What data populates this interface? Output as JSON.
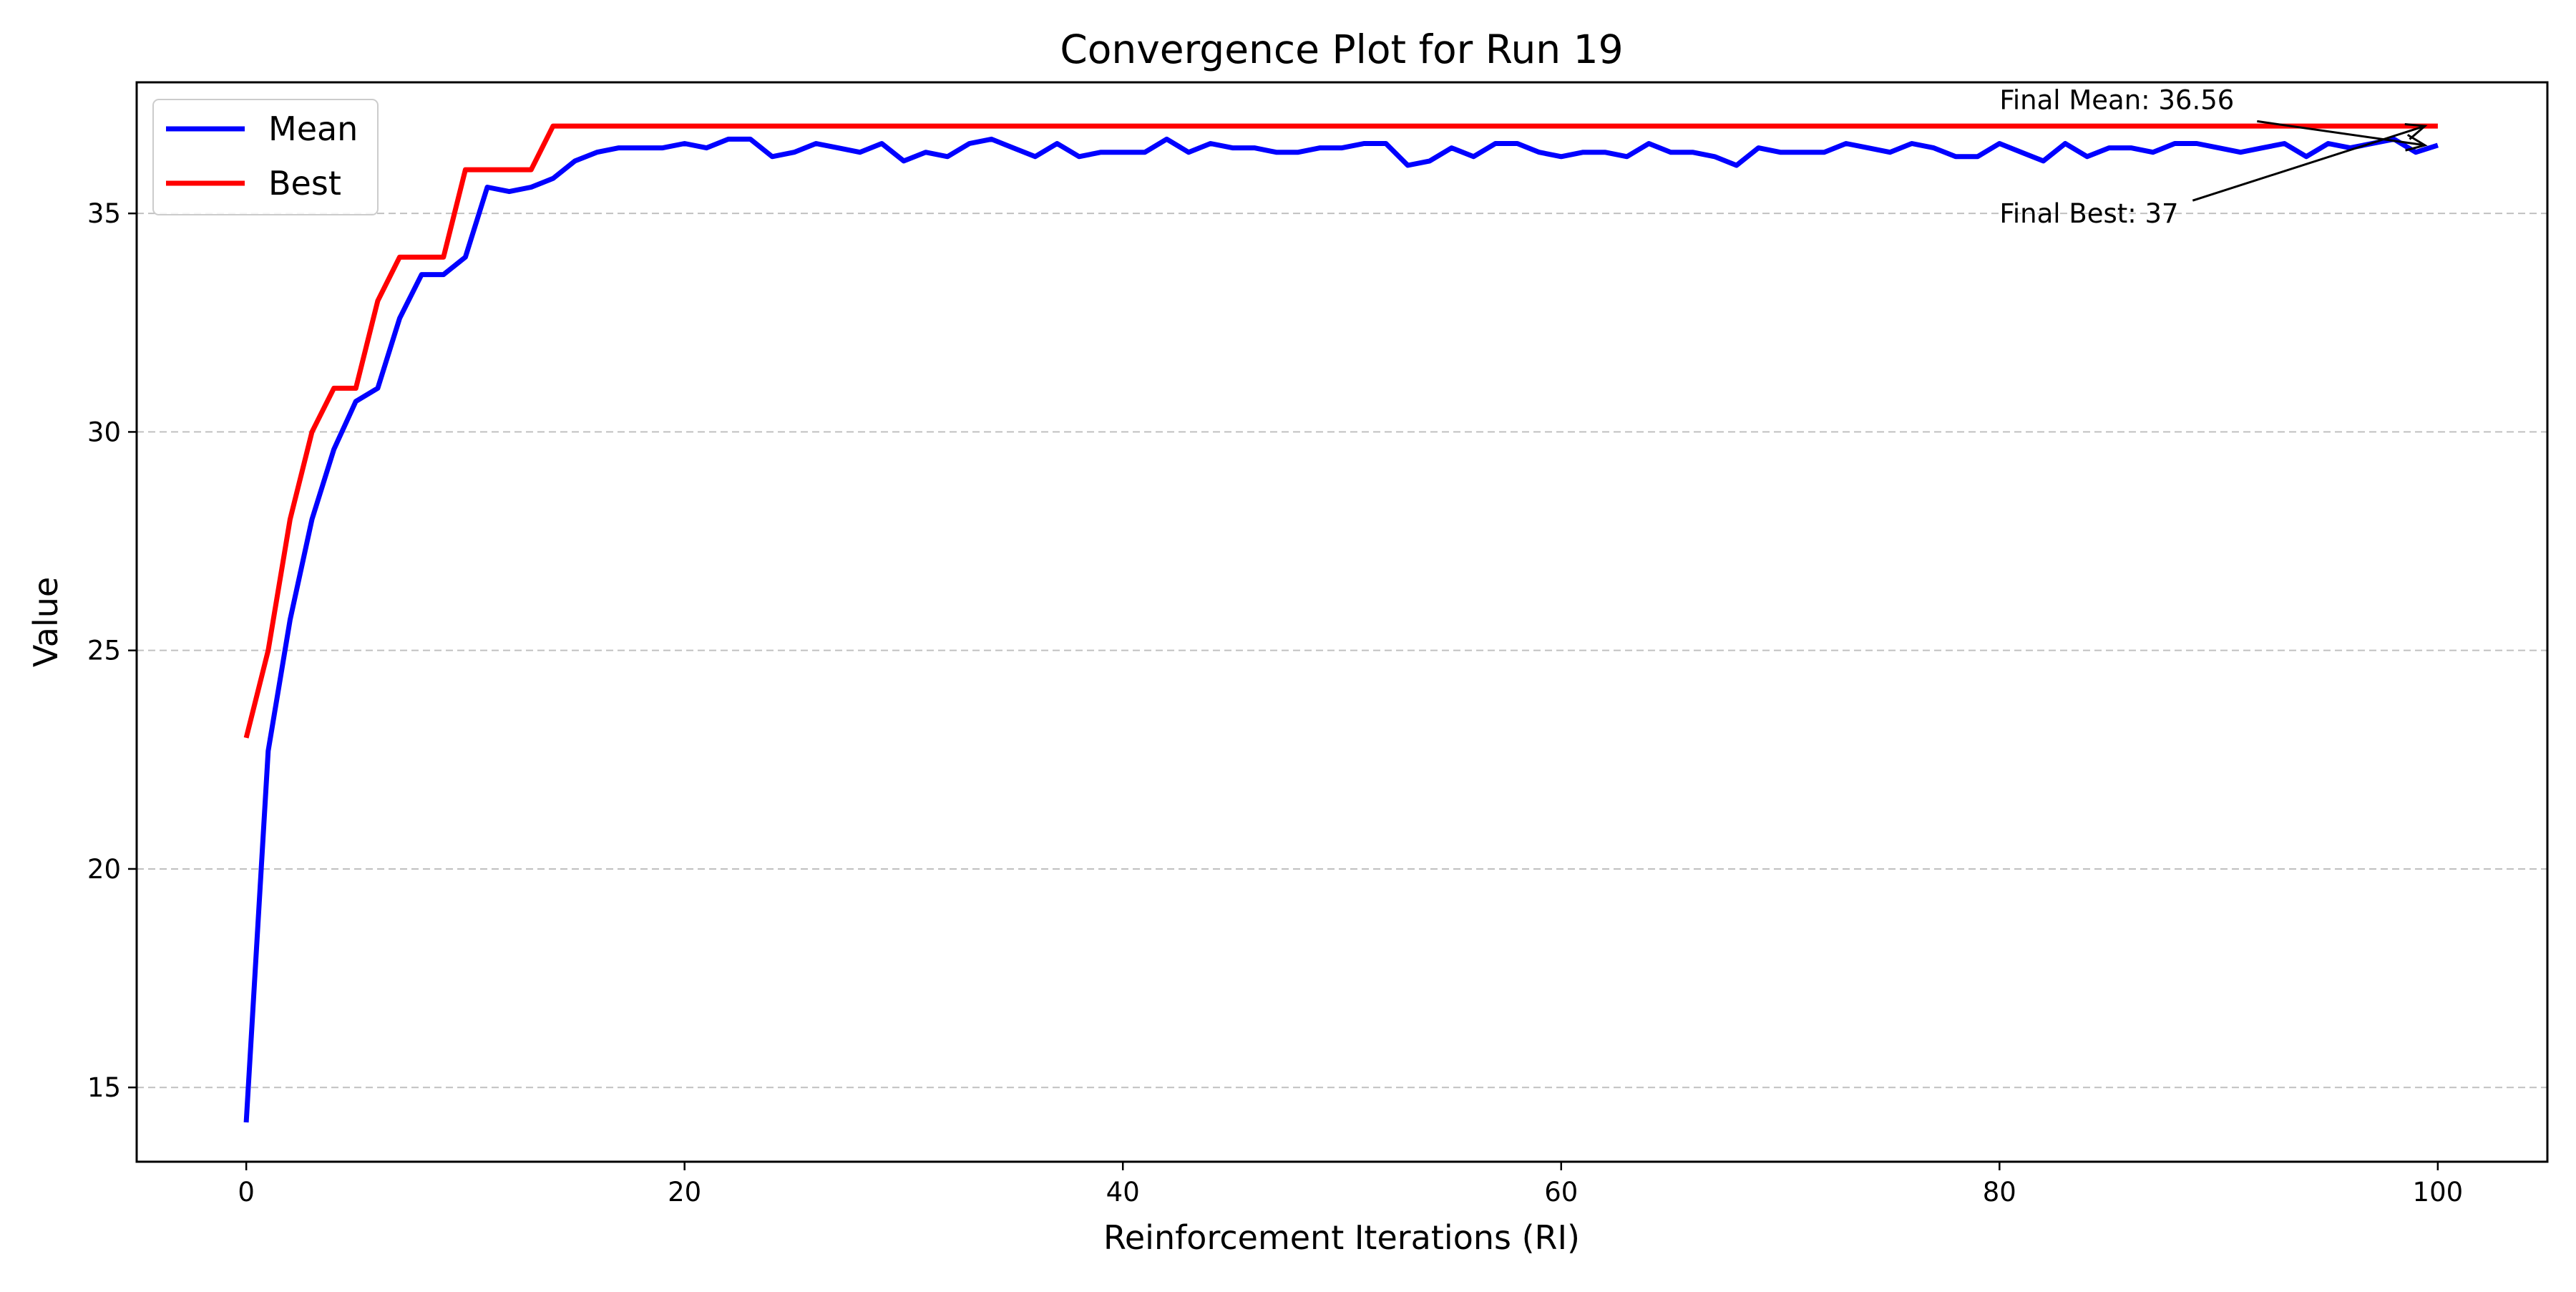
{
  "chart_data": {
    "type": "line",
    "title": "Convergence Plot for Run 19",
    "xlabel": "Reinforcement Iterations (RI)",
    "ylabel": "Value",
    "xlim": [
      -5,
      105
    ],
    "ylim": [
      13.3,
      38.0
    ],
    "xticks": [
      0,
      20,
      40,
      60,
      80,
      100
    ],
    "yticks": [
      15,
      20,
      25,
      30,
      35
    ],
    "grid": "y-dashed",
    "legend_position": "top-left",
    "series": [
      {
        "name": "Mean",
        "color": "#0000ff",
        "x": [
          0,
          1,
          2,
          3,
          4,
          5,
          6,
          7,
          8,
          9,
          10,
          11,
          12,
          13,
          14,
          15,
          16,
          17,
          18,
          19,
          20,
          21,
          22,
          23,
          24,
          25,
          26,
          27,
          28,
          29,
          30,
          31,
          32,
          33,
          34,
          35,
          36,
          37,
          38,
          39,
          40,
          41,
          42,
          43,
          44,
          45,
          46,
          47,
          48,
          49,
          50,
          51,
          52,
          53,
          54,
          55,
          56,
          57,
          58,
          59,
          60,
          61,
          62,
          63,
          64,
          65,
          66,
          67,
          68,
          69,
          70,
          71,
          72,
          73,
          74,
          75,
          76,
          77,
          78,
          79,
          80,
          81,
          82,
          83,
          84,
          85,
          86,
          87,
          88,
          89,
          90,
          91,
          92,
          93,
          94,
          95,
          96,
          97,
          98,
          99,
          100
        ],
        "values": [
          14.2,
          22.7,
          25.7,
          28.0,
          29.6,
          30.7,
          31.0,
          32.6,
          33.6,
          33.6,
          34.0,
          35.6,
          35.5,
          35.6,
          35.8,
          36.2,
          36.4,
          36.5,
          36.5,
          36.5,
          36.6,
          36.5,
          36.7,
          36.7,
          36.3,
          36.4,
          36.6,
          36.5,
          36.4,
          36.6,
          36.2,
          36.4,
          36.3,
          36.6,
          36.7,
          36.5,
          36.3,
          36.6,
          36.3,
          36.4,
          36.4,
          36.4,
          36.7,
          36.4,
          36.6,
          36.5,
          36.5,
          36.4,
          36.4,
          36.5,
          36.5,
          36.6,
          36.6,
          36.1,
          36.2,
          36.5,
          36.3,
          36.6,
          36.6,
          36.4,
          36.3,
          36.4,
          36.4,
          36.3,
          36.6,
          36.4,
          36.4,
          36.3,
          36.1,
          36.5,
          36.4,
          36.4,
          36.4,
          36.6,
          36.5,
          36.4,
          36.6,
          36.5,
          36.3,
          36.3,
          36.6,
          36.4,
          36.2,
          36.6,
          36.3,
          36.5,
          36.5,
          36.4,
          36.6,
          36.6,
          36.5,
          36.4,
          36.5,
          36.6,
          36.3,
          36.6,
          36.5,
          36.6,
          36.7,
          36.4,
          36.56
        ]
      },
      {
        "name": "Best",
        "color": "#ff0000",
        "x": [
          0,
          1,
          2,
          3,
          4,
          5,
          6,
          7,
          8,
          9,
          10,
          11,
          12,
          13,
          14,
          15,
          20,
          30,
          40,
          50,
          60,
          70,
          80,
          90,
          100
        ],
        "values": [
          23,
          25,
          28,
          30,
          31,
          31,
          33,
          34,
          34,
          34,
          36,
          36,
          36,
          36,
          37,
          37,
          37,
          37,
          37,
          37,
          37,
          37,
          37,
          37,
          37
        ]
      }
    ],
    "annotations": [
      {
        "text": "Final Mean: 36.56",
        "point": [
          100,
          36.56
        ],
        "text_at": [
          80,
          37.6
        ]
      },
      {
        "text": "Final Best: 37",
        "point": [
          100,
          37
        ],
        "text_at": [
          80,
          35.0
        ]
      }
    ]
  }
}
